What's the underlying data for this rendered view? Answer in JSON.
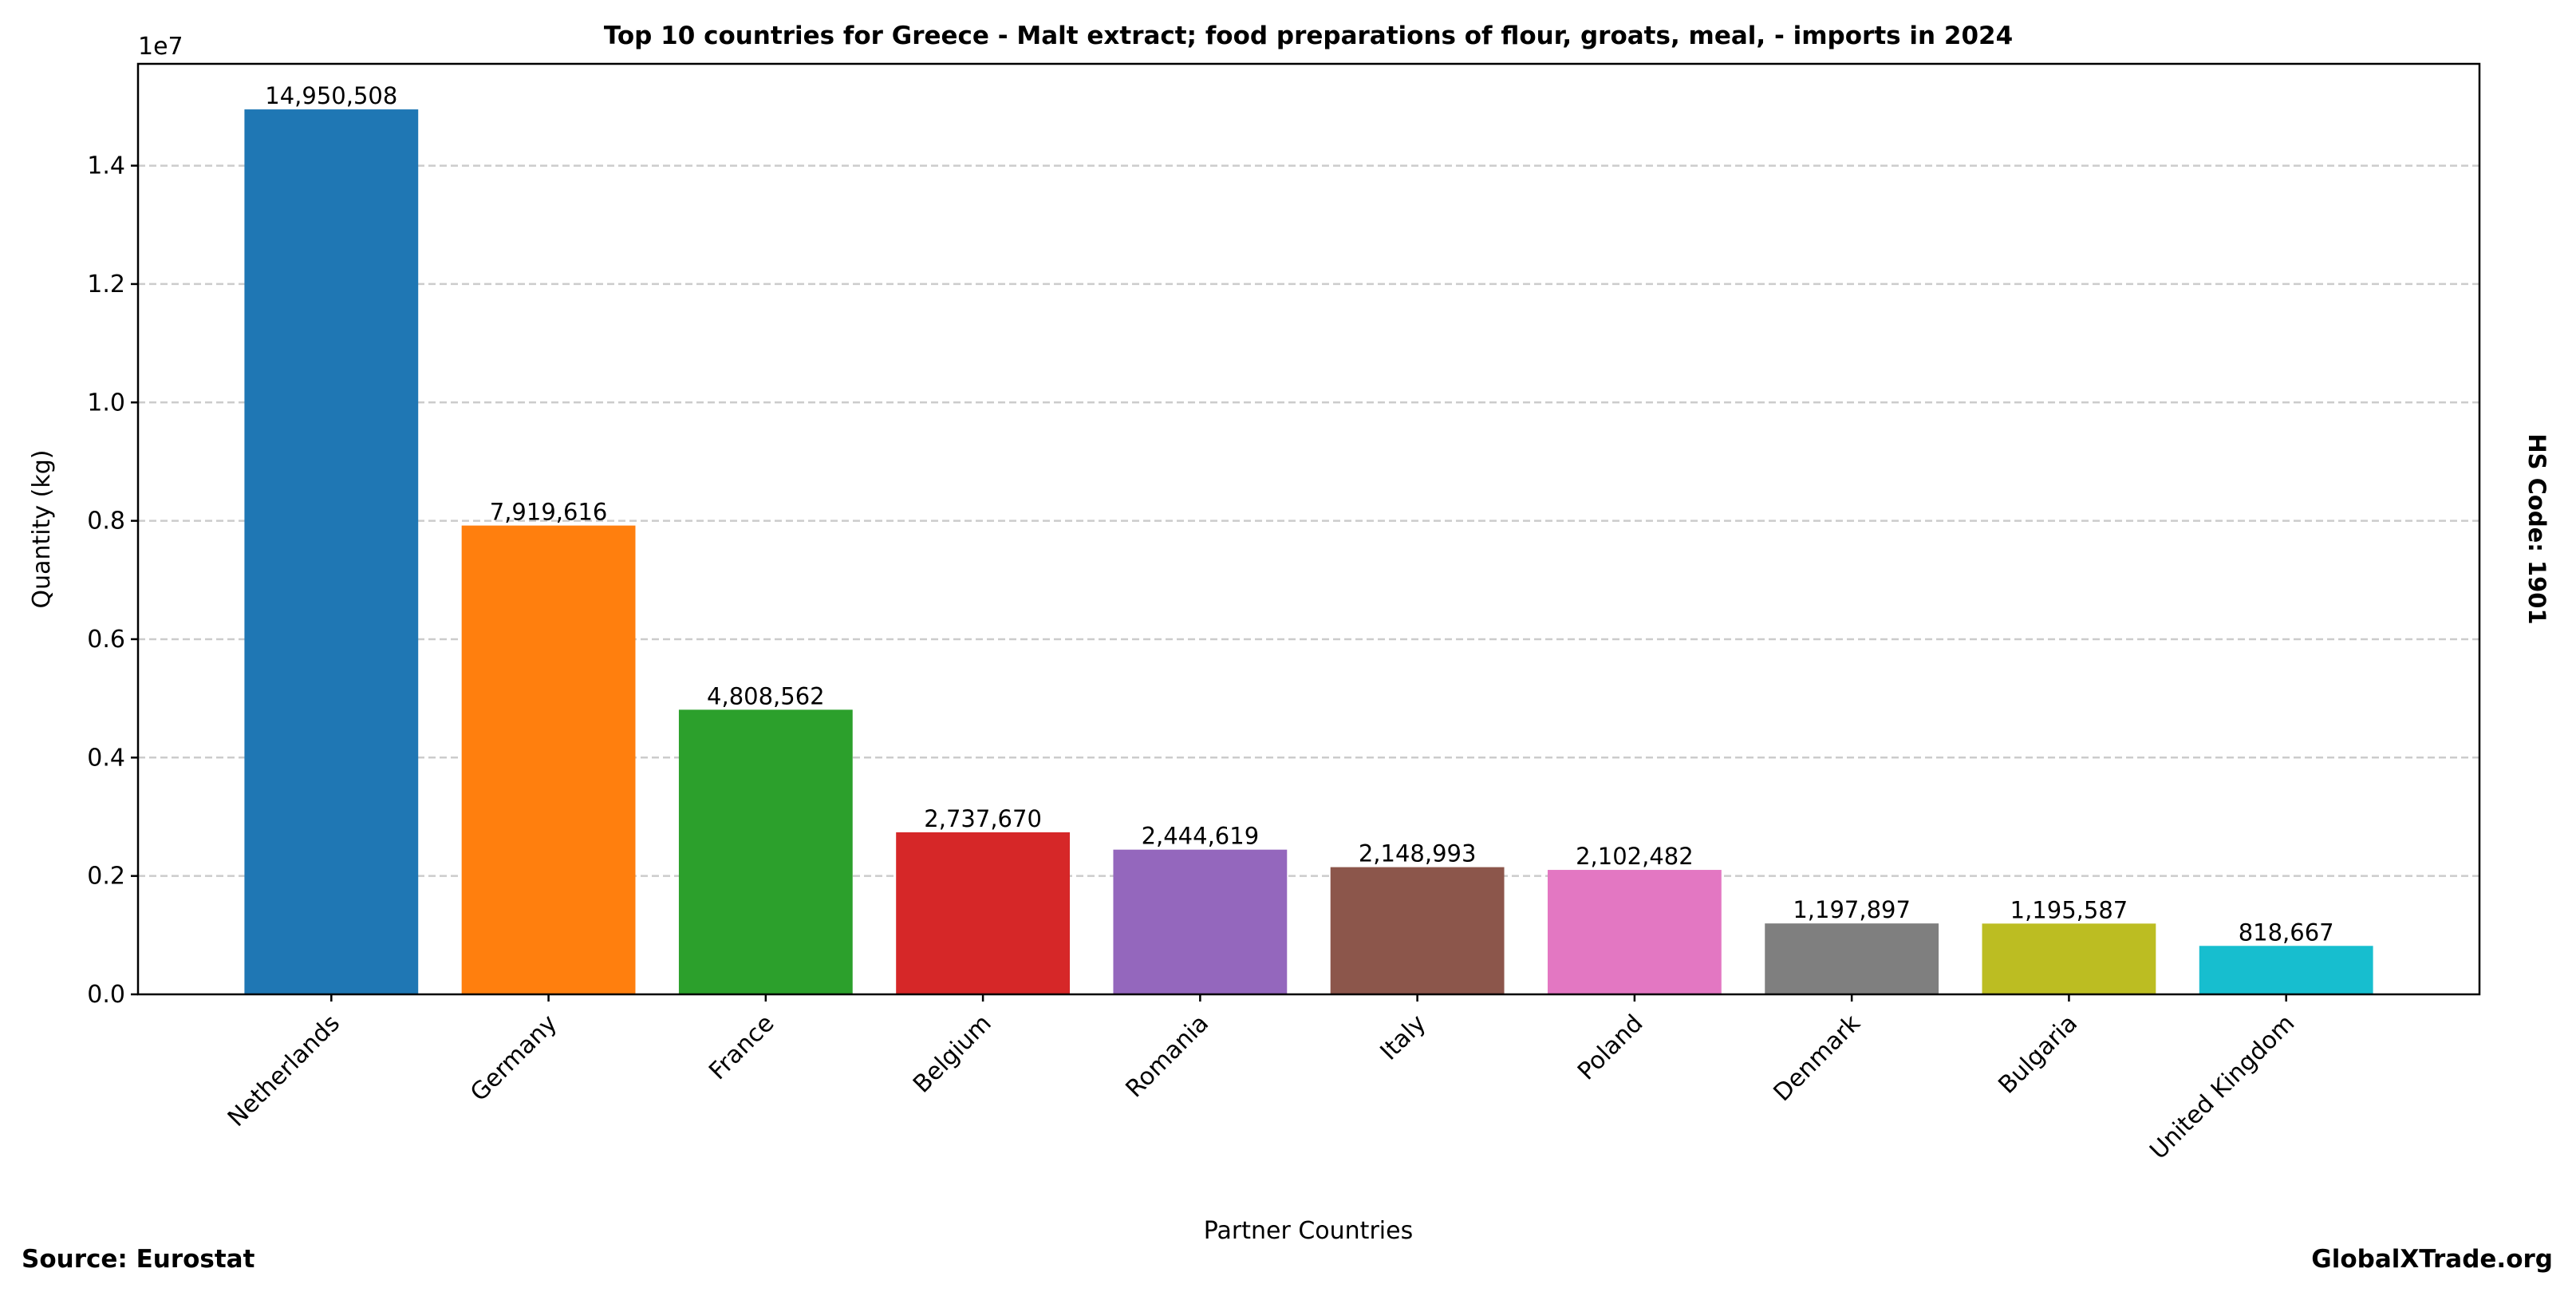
{
  "chart_data": {
    "type": "bar",
    "title": "Top 10 countries for Greece - Malt extract; food preparations of flour, groats, meal, - imports in 2024",
    "xlabel": "Partner Countries",
    "ylabel": "Quantity (kg)",
    "y_offset_label": "1e7",
    "ylim": [
      0,
      15720000
    ],
    "yticks": [
      0,
      2000000,
      4000000,
      6000000,
      8000000,
      10000000,
      12000000,
      14000000
    ],
    "ytick_labels": [
      "0.0",
      "0.2",
      "0.4",
      "0.6",
      "0.8",
      "1.0",
      "1.2",
      "1.4"
    ],
    "grid": "y dashed",
    "categories": [
      "Netherlands",
      "Germany",
      "France",
      "Belgium",
      "Romania",
      "Italy",
      "Poland",
      "Denmark",
      "Bulgaria",
      "United Kingdom"
    ],
    "values": [
      14950508,
      7919616,
      4808562,
      2737670,
      2444619,
      2148993,
      2102482,
      1197897,
      1195587,
      818667
    ],
    "value_labels": [
      "14,950,508",
      "7,919,616",
      "4,808,562",
      "2,737,670",
      "2,444,619",
      "2,148,993",
      "2,102,482",
      "1,197,897",
      "1,195,587",
      "818,667"
    ],
    "colors": [
      "#1f77b4",
      "#ff7f0e",
      "#2ca02c",
      "#d62728",
      "#9467bd",
      "#8c564b",
      "#e377c2",
      "#7f7f7f",
      "#bcbd22",
      "#17becf"
    ],
    "side_label": "HS Code: 1901",
    "source": "Source: Eurostat",
    "brand": "GlobalXTrade.org"
  }
}
